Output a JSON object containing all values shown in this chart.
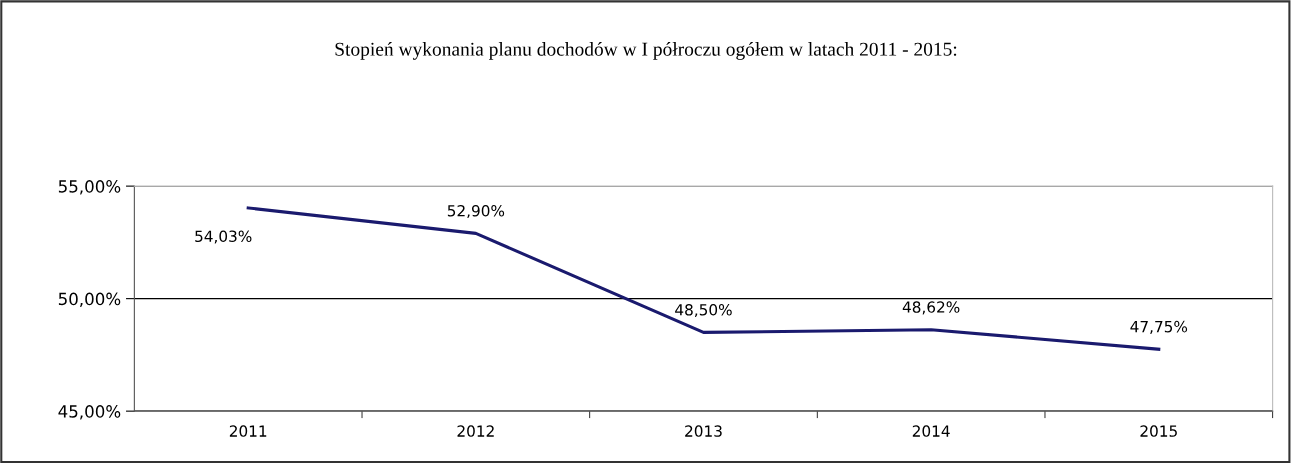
{
  "chart_data": {
    "type": "line",
    "title": "Stopień wykonania planu dochodów w I półroczu ogółem w latach 2011 - 2015:",
    "categories": [
      "2011",
      "2012",
      "2013",
      "2014",
      "2015"
    ],
    "series": [
      {
        "color": "#1a1a6e",
        "values": [
          54.03,
          52.9,
          48.5,
          48.62,
          47.75
        ],
        "value_labels": [
          "54,03%",
          "52,90%",
          "48,50%",
          "48,62%",
          "47,75%"
        ]
      }
    ],
    "ylim": [
      45,
      55
    ],
    "yticks": [
      {
        "value": 45,
        "label": "45,00%"
      },
      {
        "value": 50,
        "label": "50,00%"
      },
      {
        "value": 55,
        "label": "55,00%"
      }
    ],
    "grid": "y",
    "marker": "none",
    "line_style": "solid"
  }
}
